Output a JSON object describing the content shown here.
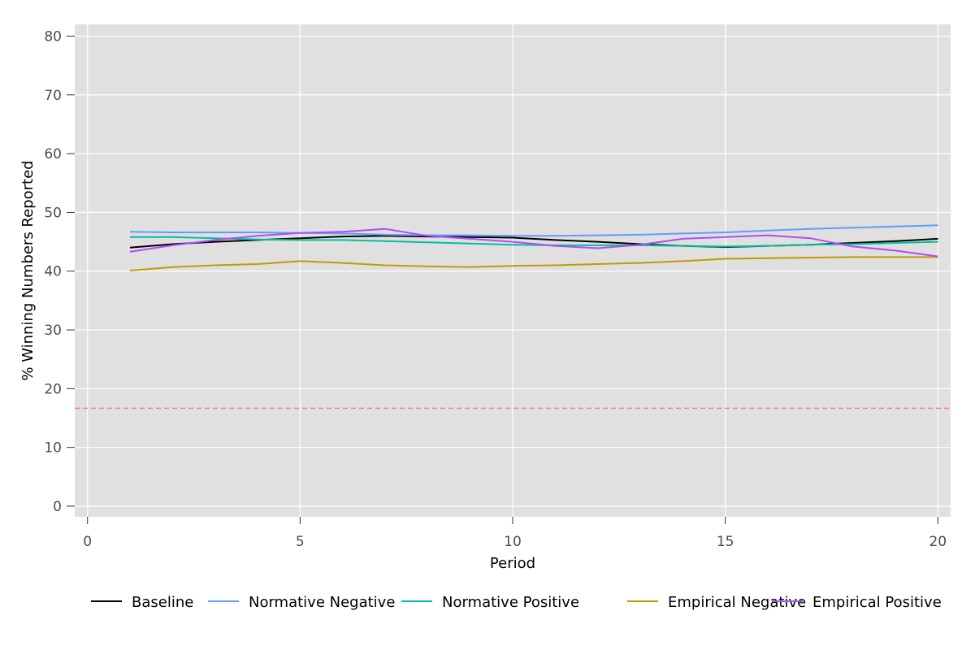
{
  "chart_data": {
    "type": "line",
    "xlabel": "Period",
    "ylabel": "% Winning Numbers Reported",
    "xlim": [
      -0.3,
      20.3
    ],
    "ylim": [
      -1.8,
      82
    ],
    "xticks": [
      0,
      5,
      10,
      15,
      20
    ],
    "yticks": [
      0,
      10,
      20,
      30,
      40,
      50,
      60,
      70,
      80
    ],
    "grid": true,
    "legend_position": "bottom",
    "reference_line": {
      "y": 16.67,
      "color": "#f8766d",
      "style": "dashed"
    },
    "x": [
      1,
      2,
      3,
      4,
      5,
      6,
      7,
      8,
      9,
      10,
      11,
      12,
      13,
      14,
      15,
      16,
      17,
      18,
      19,
      20
    ],
    "series": [
      {
        "name": "Baseline",
        "color": "#000000",
        "values": [
          44.0,
          44.6,
          45.0,
          45.3,
          45.6,
          45.9,
          46.0,
          45.9,
          45.8,
          45.7,
          45.3,
          45.0,
          44.6,
          44.3,
          44.1,
          44.3,
          44.5,
          44.8,
          45.1,
          45.5
        ]
      },
      {
        "name": "Normative Negative",
        "color": "#619cff",
        "values": [
          46.7,
          46.6,
          46.6,
          46.6,
          46.5,
          46.4,
          46.2,
          46.1,
          46.1,
          46.0,
          46.0,
          46.1,
          46.2,
          46.4,
          46.6,
          46.9,
          47.2,
          47.4,
          47.6,
          47.8
        ]
      },
      {
        "name": "Normative Positive",
        "color": "#00bfa0",
        "values": [
          45.8,
          45.8,
          45.6,
          45.4,
          45.3,
          45.3,
          45.1,
          44.9,
          44.7,
          44.5,
          44.4,
          44.4,
          44.4,
          44.3,
          44.2,
          44.3,
          44.5,
          44.6,
          44.8,
          45.0
        ]
      },
      {
        "name": "Empirical Negative",
        "color": "#c49a00",
        "values": [
          40.1,
          40.7,
          41.0,
          41.2,
          41.7,
          41.4,
          41.0,
          40.8,
          40.7,
          40.9,
          41.0,
          41.2,
          41.4,
          41.7,
          42.1,
          42.2,
          42.3,
          42.4,
          42.4,
          42.4
        ]
      },
      {
        "name": "Empirical Positive",
        "color": "#b14cf5",
        "values": [
          43.3,
          44.4,
          45.3,
          46.0,
          46.5,
          46.7,
          47.2,
          46.0,
          45.5,
          45.0,
          44.3,
          43.9,
          44.5,
          45.5,
          45.8,
          46.1,
          45.6,
          44.2,
          43.5,
          42.5
        ]
      }
    ]
  }
}
